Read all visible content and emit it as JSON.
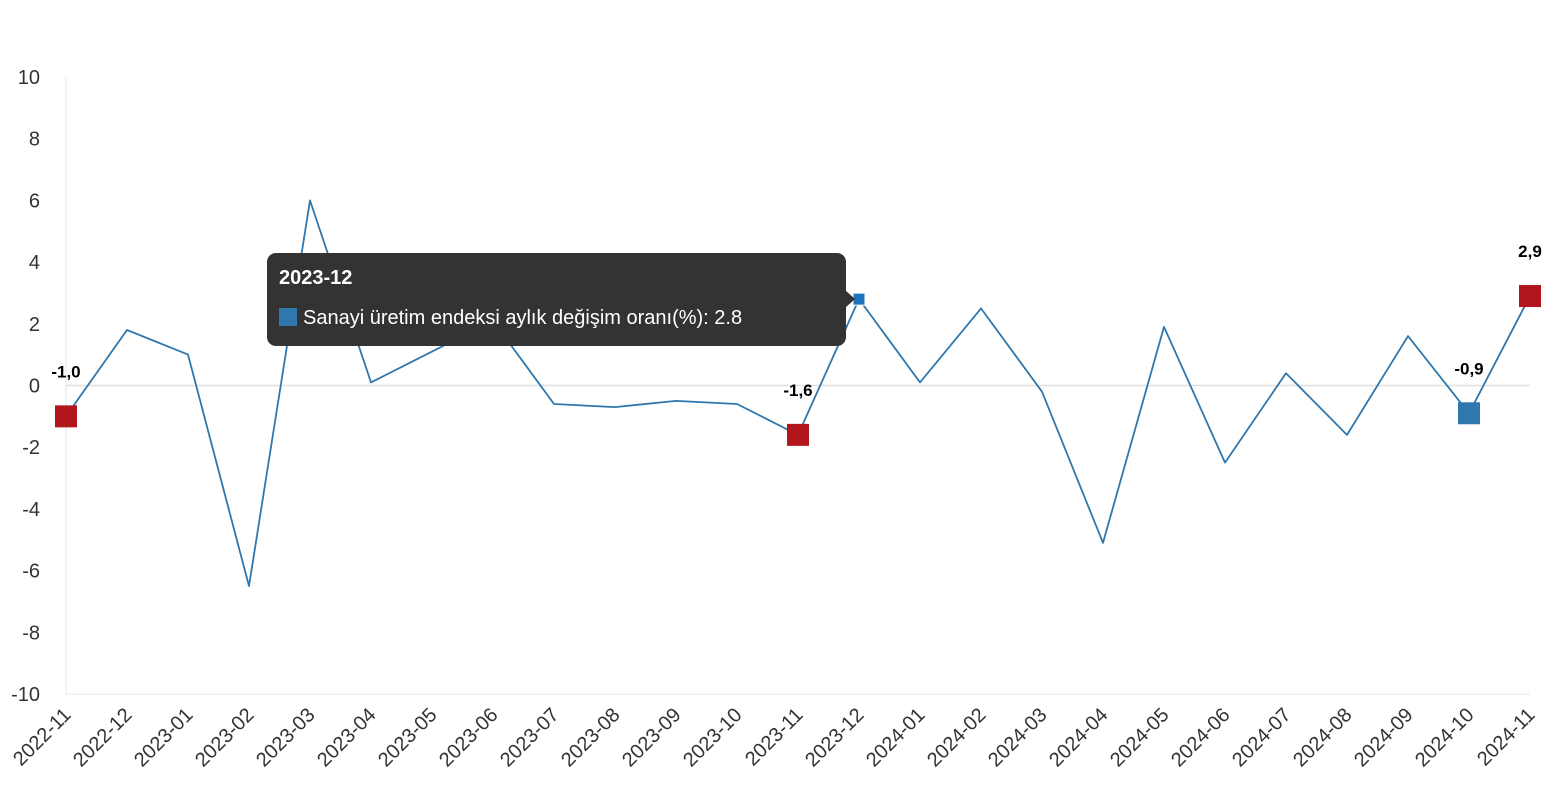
{
  "chart_data": {
    "type": "line",
    "title": "",
    "xlabel": "",
    "ylabel": "",
    "ylim": [
      -10,
      10
    ],
    "yticks": [
      -10,
      -8,
      -6,
      -4,
      -2,
      0,
      2,
      4,
      6,
      8,
      10
    ],
    "ytick_labels": [
      "-10",
      "-8",
      "-6",
      "-4",
      "-2",
      "0",
      "2",
      "4",
      "6",
      "8",
      "10"
    ],
    "grid": false,
    "zero_line": true,
    "categories": [
      "2022-11",
      "2022-12",
      "2023-01",
      "2023-02",
      "2023-03",
      "2023-04",
      "2023-05",
      "2023-06",
      "2023-07",
      "2023-08",
      "2023-09",
      "2023-10",
      "2023-11",
      "2023-12",
      "2024-01",
      "2024-02",
      "2024-03",
      "2024-04",
      "2024-05",
      "2024-06",
      "2024-07",
      "2024-08",
      "2024-09",
      "2024-10",
      "2024-11"
    ],
    "series": [
      {
        "name": "Sanayi üretim endeksi aylık değişim oranı(%)",
        "color": "#2f77ad",
        "values": [
          -1.0,
          1.8,
          1.0,
          -6.5,
          6.0,
          0.1,
          1.1,
          2.1,
          -0.6,
          -0.7,
          -0.5,
          -0.6,
          -1.6,
          2.8,
          0.1,
          2.5,
          -0.2,
          -5.1,
          1.9,
          -2.5,
          0.4,
          -1.6,
          1.6,
          -0.9,
          2.9
        ]
      }
    ],
    "highlighted_points": [
      {
        "category": "2022-11",
        "label": "-1,0",
        "color": "#b0161c"
      },
      {
        "category": "2023-11",
        "label": "-1,6",
        "color": "#b0161c"
      },
      {
        "category": "2024-10",
        "label": "-0,9",
        "color": "#2f77ad"
      },
      {
        "category": "2024-11",
        "label": "2,9",
        "color": "#b0161c"
      }
    ],
    "hover_point": {
      "category": "2023-12",
      "color": "#1f72bf"
    }
  },
  "tooltip": {
    "title": "2023-12",
    "series_name": "Sanayi üretim endeksi aylık değişim oranı(%)",
    "value": "2.8",
    "text": "Sanayi üretim endeksi aylık değişim oranı(%): 2.8",
    "swatch_color": "#2f77ad"
  }
}
